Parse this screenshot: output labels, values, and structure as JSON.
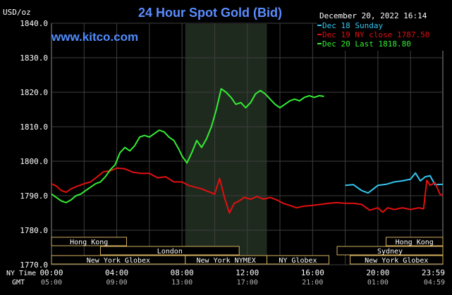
{
  "header": {
    "y_unit": "USD/oz",
    "title": "24 Hour Spot Gold (Bid)",
    "datetime": "December 20, 2022 16:14",
    "watermark": "www.kitco.com"
  },
  "legend": [
    {
      "label": "Dec 18 Sunday",
      "color": "#33c6f0"
    },
    {
      "label": "Dec 19 NY close 1787.50",
      "color": "#e01010"
    },
    {
      "label": "Dec 20 Last 1818.80",
      "color": "#33ee33"
    }
  ],
  "axis": {
    "row1_label": "NY Time",
    "row2_label": "GMT",
    "ny_times": [
      "00:00",
      "04:00",
      "08:00",
      "12:00",
      "16:00",
      "20:00",
      "23:59"
    ],
    "gmt_times": [
      "05:00",
      "09:00",
      "13:00",
      "17:00",
      "21:00",
      "01:00",
      "04:59"
    ]
  },
  "sessions": [
    {
      "label": "Hong Kong",
      "start": 0.0,
      "end": 4.6
    },
    {
      "label": "London",
      "start": 3.0,
      "end": 11.5
    },
    {
      "label": "New York Globex",
      "start": 0.0,
      "end": 8.2
    },
    {
      "label": "New York NYMEX",
      "start": 8.2,
      "end": 13.2
    },
    {
      "label": "NY Globex",
      "start": 13.2,
      "end": 17.0
    },
    {
      "label": "Hong Kong",
      "start": 20.5,
      "end": 23.98
    },
    {
      "label": "Sydney",
      "start": 17.5,
      "end": 23.98
    },
    {
      "label": "New York Globex",
      "start": 18.3,
      "end": 23.98
    }
  ],
  "chart_data": {
    "type": "line",
    "title": "24 Hour Spot Gold (Bid)",
    "ylabel": "USD/oz",
    "ylim": [
      1770,
      1840
    ],
    "yticks": [
      "1840.0",
      "1830.0",
      "1820.0",
      "1810.0",
      "1800.0",
      "1790.0",
      "1780.0",
      "1770.0"
    ],
    "xlim": [
      0,
      23.98
    ],
    "xlabel": "NY Time",
    "grid": true,
    "shaded_region": [
      8.2,
      13.2
    ],
    "legend_position": "top-right",
    "series": [
      {
        "name": "Dec 18 Sunday",
        "color": "#33c6f0",
        "x": [
          18.0,
          18.5,
          19.0,
          19.4,
          19.6,
          20.0,
          20.5,
          21.0,
          21.5,
          22.0,
          22.3,
          22.6,
          22.9,
          23.2,
          23.5,
          23.98
        ],
        "y": [
          1793.0,
          1793.2,
          1791.5,
          1790.8,
          1791.5,
          1793.0,
          1793.3,
          1794.0,
          1794.3,
          1794.8,
          1796.6,
          1794.3,
          1795.5,
          1795.8,
          1793.2,
          1793.3
        ]
      },
      {
        "name": "Dec 19 NY close 1787.50",
        "color": "#e01010",
        "x": [
          0.0,
          0.3,
          0.6,
          0.9,
          1.2,
          1.6,
          2.0,
          2.4,
          2.8,
          3.2,
          3.6,
          4.0,
          4.5,
          5.0,
          5.5,
          6.0,
          6.5,
          7.0,
          7.5,
          8.0,
          8.4,
          8.8,
          9.2,
          9.6,
          10.0,
          10.3,
          10.6,
          10.9,
          11.2,
          11.5,
          11.8,
          12.2,
          12.6,
          13.0,
          13.4,
          13.8,
          14.2,
          14.6,
          15.0,
          15.5,
          16.0,
          16.5,
          17.0,
          17.5,
          18.0,
          18.5,
          19.0,
          19.5,
          20.0,
          20.3,
          20.6,
          21.0,
          21.5,
          22.0,
          22.5,
          22.8,
          23.0,
          23.2,
          23.5,
          23.8,
          23.98
        ],
        "y": [
          1793.5,
          1792.8,
          1791.5,
          1791.0,
          1792.0,
          1792.8,
          1793.5,
          1794.0,
          1795.5,
          1797.0,
          1797.2,
          1798.0,
          1797.8,
          1796.8,
          1796.5,
          1796.5,
          1795.2,
          1795.5,
          1794.0,
          1794.0,
          1793.0,
          1792.5,
          1792.0,
          1791.2,
          1790.5,
          1795.0,
          1789.5,
          1785.0,
          1787.8,
          1788.5,
          1789.5,
          1789.0,
          1789.8,
          1789.0,
          1789.5,
          1788.8,
          1787.8,
          1787.2,
          1786.5,
          1787.0,
          1787.2,
          1787.5,
          1787.8,
          1788.0,
          1787.8,
          1787.8,
          1787.5,
          1785.8,
          1786.5,
          1785.2,
          1786.5,
          1786.0,
          1786.5,
          1786.0,
          1786.5,
          1786.2,
          1794.5,
          1793.0,
          1793.8,
          1790.5,
          1790.0
        ]
      },
      {
        "name": "Dec 20 Last 1818.80",
        "color": "#33ee33",
        "x": [
          0.0,
          0.3,
          0.6,
          0.9,
          1.2,
          1.5,
          1.8,
          2.1,
          2.4,
          2.7,
          3.0,
          3.3,
          3.6,
          3.9,
          4.2,
          4.5,
          4.8,
          5.1,
          5.4,
          5.7,
          6.0,
          6.3,
          6.6,
          6.9,
          7.2,
          7.5,
          7.8,
          8.0,
          8.3,
          8.6,
          8.9,
          9.2,
          9.5,
          9.8,
          10.1,
          10.4,
          10.7,
          11.0,
          11.3,
          11.6,
          11.9,
          12.2,
          12.5,
          12.8,
          13.1,
          13.4,
          13.7,
          14.0,
          14.3,
          14.6,
          14.9,
          15.2,
          15.5,
          15.8,
          16.1,
          16.4,
          16.7
        ],
        "y": [
          1790.5,
          1789.5,
          1788.5,
          1788.0,
          1788.8,
          1790.0,
          1790.5,
          1791.5,
          1792.5,
          1793.5,
          1794.0,
          1795.5,
          1797.5,
          1799.0,
          1802.5,
          1804.0,
          1803.0,
          1804.5,
          1807.0,
          1807.5,
          1807.0,
          1808.0,
          1809.0,
          1808.5,
          1807.0,
          1806.0,
          1803.5,
          1801.5,
          1799.5,
          1802.5,
          1806.0,
          1804.0,
          1806.5,
          1810.0,
          1815.0,
          1821.0,
          1820.0,
          1818.5,
          1816.5,
          1817.0,
          1815.5,
          1817.0,
          1819.5,
          1820.5,
          1819.5,
          1818.0,
          1816.5,
          1815.5,
          1816.5,
          1817.5,
          1818.0,
          1817.5,
          1818.5,
          1819.0,
          1818.5,
          1819.0,
          1818.8
        ]
      }
    ]
  }
}
